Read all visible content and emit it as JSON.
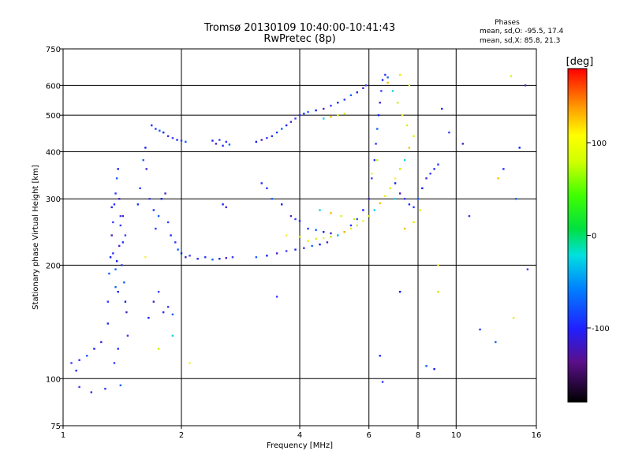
{
  "title": {
    "line1": "Tromsø 20130109 10:40:00-10:41:43",
    "line2": "RwPretec (8p)"
  },
  "stats": {
    "heading": "Phases",
    "o_line": "mean, sd,O: -95.5, 17.4",
    "x_line": "mean, sd,X:  85.8, 21.3"
  },
  "chart_data": {
    "type": "scatter",
    "xlabel": "Frequency [MHz]",
    "ylabel": "Stationary phase Virtual Height [km]",
    "x_scale": "log",
    "y_scale": "log",
    "xlim": [
      1,
      16
    ],
    "ylim": [
      75,
      750
    ],
    "grid": true,
    "x_gridlines": [
      2,
      4,
      6,
      8,
      10
    ],
    "y_gridlines": [
      100,
      200,
      300,
      400,
      500,
      600
    ],
    "x_ticks": [
      {
        "value": 1,
        "label": "1"
      },
      {
        "value": 2,
        "label": "2"
      },
      {
        "value": 4,
        "label": "4"
      },
      {
        "value": 6,
        "label": "6"
      },
      {
        "value": 8,
        "label": "8"
      },
      {
        "value": 10,
        "label": "10"
      },
      {
        "value": 16,
        "label": "16"
      }
    ],
    "y_ticks": [
      {
        "value": 75,
        "label": "75"
      },
      {
        "value": 100,
        "label": "100"
      },
      {
        "value": 200,
        "label": "200"
      },
      {
        "value": 300,
        "label": "300"
      },
      {
        "value": 400,
        "label": "400"
      },
      {
        "value": 500,
        "label": "500"
      },
      {
        "value": 600,
        "label": "600"
      },
      {
        "value": 750,
        "label": "750"
      }
    ],
    "colorbar": {
      "label": "[deg]",
      "range": [
        -180,
        180
      ],
      "ticks": [
        {
          "value": 100,
          "label": "100"
        },
        {
          "value": 0,
          "label": "0"
        },
        {
          "value": -100,
          "label": "-100"
        }
      ]
    },
    "series": [
      {
        "points": [
          [
            1.3,
            140
          ],
          [
            1.3,
            160
          ],
          [
            1.31,
            190
          ],
          [
            1.32,
            210
          ],
          [
            1.33,
            240
          ],
          [
            1.34,
            260
          ],
          [
            1.35,
            290
          ],
          [
            1.36,
            310
          ],
          [
            1.37,
            340
          ],
          [
            1.38,
            360
          ],
          [
            1.39,
            300
          ],
          [
            1.4,
            270
          ],
          [
            1.42,
            230
          ],
          [
            1.41,
            200
          ],
          [
            1.43,
            180
          ],
          [
            1.44,
            160
          ],
          [
            1.45,
            150
          ],
          [
            1.46,
            130
          ],
          [
            1.38,
            120
          ],
          [
            1.35,
            110
          ],
          [
            1.36,
            175
          ],
          [
            1.37,
            205
          ],
          [
            1.39,
            225
          ],
          [
            1.4,
            255
          ],
          [
            1.33,
            285
          ],
          [
            1.34,
            215
          ],
          [
            1.36,
            195
          ],
          [
            1.38,
            170
          ],
          [
            1.42,
            270
          ],
          [
            1.44,
            240
          ],
          [
            1.55,
            290
          ],
          [
            1.57,
            320
          ],
          [
            1.6,
            380
          ],
          [
            1.62,
            410
          ],
          [
            1.63,
            360
          ],
          [
            1.66,
            300
          ],
          [
            1.7,
            280
          ],
          [
            1.72,
            250
          ],
          [
            1.75,
            270
          ],
          [
            1.78,
            300
          ],
          [
            1.82,
            310
          ],
          [
            1.85,
            260
          ],
          [
            1.88,
            240
          ],
          [
            1.93,
            230
          ],
          [
            1.96,
            220
          ],
          [
            2.0,
            215
          ],
          [
            2.05,
            210
          ],
          [
            2.1,
            212
          ],
          [
            2.2,
            208
          ],
          [
            2.3,
            210
          ],
          [
            2.4,
            207
          ],
          [
            2.5,
            208
          ],
          [
            2.6,
            209
          ],
          [
            2.7,
            210
          ],
          [
            1.68,
            470
          ],
          [
            1.72,
            460
          ],
          [
            1.76,
            455
          ],
          [
            1.8,
            450
          ],
          [
            1.85,
            440
          ],
          [
            1.9,
            435
          ],
          [
            1.95,
            430
          ],
          [
            2.0,
            428
          ],
          [
            2.05,
            425
          ],
          [
            2.4,
            428
          ],
          [
            2.45,
            420
          ],
          [
            2.5,
            430
          ],
          [
            2.55,
            415
          ],
          [
            2.6,
            425
          ],
          [
            2.65,
            418
          ],
          [
            3.1,
            425
          ],
          [
            3.2,
            430
          ],
          [
            3.3,
            435
          ],
          [
            3.4,
            440
          ],
          [
            3.5,
            450
          ],
          [
            3.6,
            460
          ],
          [
            3.7,
            470
          ],
          [
            3.8,
            480
          ],
          [
            3.9,
            490
          ],
          [
            4.0,
            500
          ],
          [
            4.1,
            505
          ],
          [
            4.2,
            510
          ],
          [
            4.4,
            515
          ],
          [
            4.6,
            520
          ],
          [
            4.8,
            530
          ],
          [
            5.0,
            540
          ],
          [
            5.2,
            550
          ],
          [
            5.4,
            565
          ],
          [
            5.6,
            575
          ],
          [
            5.8,
            590
          ],
          [
            5.9,
            600
          ],
          [
            3.2,
            330
          ],
          [
            3.3,
            320
          ],
          [
            3.4,
            300
          ],
          [
            3.6,
            290
          ],
          [
            3.8,
            270
          ],
          [
            3.9,
            265
          ],
          [
            4.0,
            262
          ],
          [
            4.2,
            250
          ],
          [
            4.4,
            248
          ],
          [
            4.6,
            245
          ],
          [
            4.8,
            243
          ],
          [
            5.0,
            240
          ],
          [
            5.2,
            245
          ],
          [
            5.4,
            255
          ],
          [
            5.6,
            265
          ],
          [
            5.8,
            280
          ],
          [
            6.0,
            300
          ],
          [
            6.1,
            340
          ],
          [
            6.2,
            380
          ],
          [
            6.25,
            420
          ],
          [
            6.3,
            460
          ],
          [
            6.35,
            500
          ],
          [
            6.4,
            540
          ],
          [
            6.45,
            580
          ],
          [
            6.5,
            620
          ],
          [
            6.6,
            640
          ],
          [
            6.7,
            630
          ],
          [
            7.0,
            330
          ],
          [
            7.2,
            310
          ],
          [
            7.4,
            300
          ],
          [
            7.6,
            290
          ],
          [
            7.8,
            285
          ],
          [
            8.0,
            300
          ],
          [
            8.2,
            320
          ],
          [
            8.4,
            340
          ],
          [
            8.6,
            350
          ],
          [
            8.8,
            360
          ],
          [
            9.0,
            370
          ],
          [
            3.1,
            210
          ],
          [
            3.3,
            212
          ],
          [
            3.5,
            215
          ],
          [
            3.7,
            218
          ],
          [
            3.9,
            220
          ],
          [
            4.1,
            222
          ],
          [
            4.3,
            225
          ],
          [
            4.5,
            227
          ],
          [
            4.7,
            230
          ],
          [
            1.05,
            110
          ],
          [
            1.08,
            105
          ],
          [
            1.1,
            112
          ],
          [
            1.15,
            115
          ],
          [
            1.2,
            120
          ],
          [
            1.25,
            125
          ],
          [
            1.1,
            95
          ],
          [
            1.18,
            92
          ],
          [
            1.28,
            94
          ],
          [
            1.4,
            96
          ],
          [
            1.65,
            145
          ],
          [
            1.7,
            160
          ],
          [
            1.75,
            170
          ],
          [
            1.8,
            150
          ],
          [
            1.85,
            155
          ],
          [
            1.9,
            148
          ],
          [
            2.55,
            290
          ],
          [
            2.6,
            285
          ],
          [
            3.5,
            165
          ],
          [
            6.4,
            115
          ],
          [
            6.5,
            98
          ],
          [
            8.4,
            108
          ],
          [
            8.8,
            106
          ],
          [
            10.4,
            420
          ],
          [
            9.6,
            450
          ],
          [
            9.2,
            520
          ],
          [
            10.8,
            270
          ],
          [
            14.2,
            300
          ],
          [
            14.5,
            410
          ],
          [
            15.0,
            600
          ],
          [
            15.2,
            195
          ],
          [
            13.2,
            360
          ],
          [
            11.5,
            135
          ],
          [
            12.6,
            125
          ],
          [
            7.2,
            170
          ]
        ]
      },
      {
        "points": [
          [
            4.2,
            232
          ],
          [
            4.4,
            235
          ],
          [
            4.6,
            236
          ],
          [
            4.8,
            238
          ],
          [
            5.0,
            240
          ],
          [
            5.2,
            245
          ],
          [
            5.4,
            250
          ],
          [
            5.6,
            255
          ],
          [
            5.8,
            262
          ],
          [
            6.0,
            270
          ],
          [
            6.2,
            280
          ],
          [
            6.4,
            292
          ],
          [
            6.6,
            305
          ],
          [
            6.8,
            320
          ],
          [
            7.0,
            340
          ],
          [
            7.2,
            360
          ],
          [
            7.4,
            380
          ],
          [
            7.6,
            410
          ],
          [
            7.8,
            440
          ],
          [
            7.5,
            470
          ],
          [
            7.3,
            500
          ],
          [
            7.1,
            540
          ],
          [
            6.9,
            580
          ],
          [
            6.7,
            610
          ],
          [
            7.2,
            640
          ],
          [
            7.6,
            600
          ],
          [
            3.7,
            240
          ],
          [
            4.0,
            238
          ],
          [
            4.5,
            280
          ],
          [
            4.8,
            275
          ],
          [
            5.1,
            270
          ],
          [
            5.5,
            265
          ],
          [
            6.1,
            350
          ],
          [
            6.3,
            380
          ],
          [
            7.0,
            300
          ],
          [
            7.4,
            250
          ],
          [
            7.8,
            260
          ],
          [
            8.1,
            280
          ],
          [
            9.0,
            200
          ],
          [
            9.0,
            170
          ],
          [
            4.6,
            490
          ],
          [
            4.8,
            495
          ],
          [
            5.0,
            500
          ],
          [
            5.2,
            505
          ],
          [
            1.62,
            210
          ],
          [
            1.75,
            120
          ],
          [
            1.9,
            130
          ],
          [
            12.8,
            340
          ],
          [
            14.0,
            145
          ],
          [
            13.8,
            635
          ],
          [
            2.1,
            110
          ]
        ]
      }
    ]
  }
}
